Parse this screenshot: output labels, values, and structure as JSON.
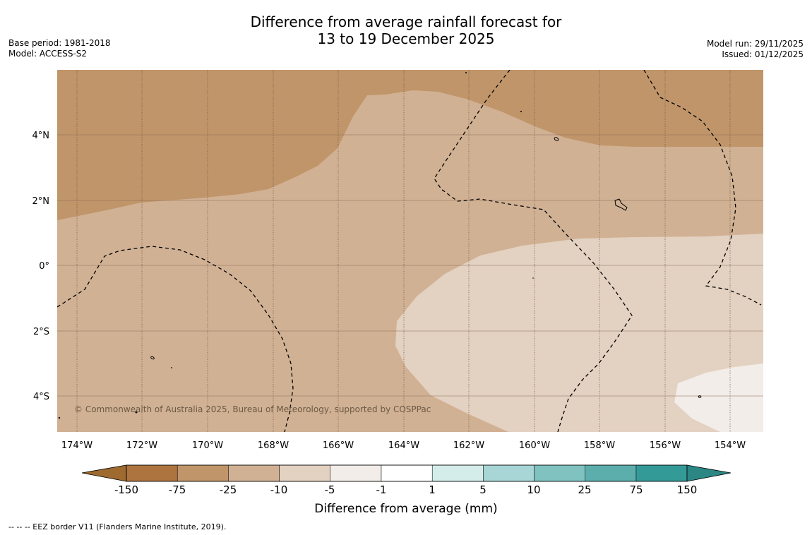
{
  "title_line1": "Difference from average rainfall forecast for",
  "title_line2": "13 to 19 December 2025",
  "base_period": "Base period: 1981-2018",
  "model": "Model: ACCESS-S2",
  "model_run": "Model run: 29/11/2025",
  "issued": "Issued: 01/12/2025",
  "copyright": "© Commonwealth of Australia 2025, Bureau of Meteorology, supported by COSPPac",
  "footnote": "--  --  -- EEZ border V11 (Flanders Marine Institute, 2019).",
  "map": {
    "lat_labels": [
      "4°N",
      "2°N",
      "0°",
      "2°S",
      "4°S"
    ],
    "lon_labels": [
      "174°W",
      "172°W",
      "170°W",
      "168°W",
      "166°W",
      "164°W",
      "162°W",
      "160°W",
      "158°W",
      "156°W",
      "154°W"
    ]
  },
  "colorbar": {
    "title": "Difference from average (mm)",
    "ticks": [
      "-150",
      "-75",
      "-25",
      "-10",
      "-5",
      "-1",
      "1",
      "5",
      "10",
      "25",
      "75",
      "150"
    ],
    "colors": {
      "under": "#9e6a2f",
      "c1": "#ad7440",
      "c2": "#c0956a",
      "c3": "#d1b194",
      "c4": "#e3d1c1",
      "c5": "#f2ede8",
      "c6": "#ffffff",
      "c7": "#d4ecea",
      "c8": "#a8d5d5",
      "c9": "#80c2c0",
      "c10": "#5caeac",
      "c11": "#349a98",
      "over": "#2b8684"
    }
  }
}
